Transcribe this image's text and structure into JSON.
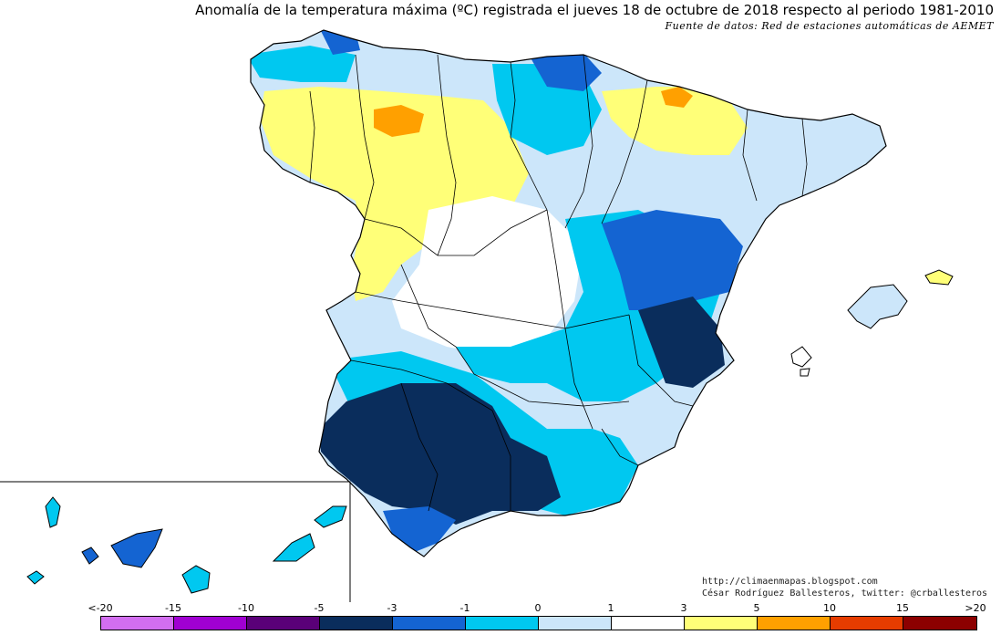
{
  "title": "Anomalía de la temperatura máxima (ºC) registrada el jueves 18 de octubre de 2018 respecto al periodo 1981-2010",
  "source": "Fuente de datos: Red de estaciones automáticas de AEMET",
  "credits": {
    "blog": "http://climaenmapas.blogspot.com",
    "author": "César Rodríguez Ballesteros, twitter: @crballesteros"
  },
  "legend": {
    "ticks": [
      "<-20",
      "-15",
      "-10",
      "-5",
      "-3",
      "-1",
      "0",
      "1",
      "3",
      "5",
      "10",
      "15",
      ">20"
    ],
    "colors": [
      "#d26ef0",
      "#a000d2",
      "#5a0078",
      "#0a2d5c",
      "#1464d2",
      "#00c8f0",
      "#cce6fa",
      "#ffffff",
      "#ffff78",
      "#ffa000",
      "#e63c00",
      "#8c0000",
      "#6e3c00"
    ]
  }
}
